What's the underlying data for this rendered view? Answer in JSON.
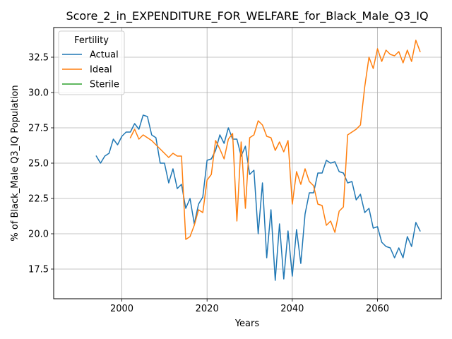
{
  "chart_data": {
    "type": "line",
    "title": "Score_2_in_EXPENDITURE_FOR_WELFARE_for_Black_Male_Q3_IQ",
    "xlabel": "Years",
    "ylabel": "% of Black_Male Q3_IQ Population",
    "xlim": [
      1984,
      2075
    ],
    "ylim": [
      15.4,
      34.6
    ],
    "xticks": [
      2000,
      2020,
      2040,
      2060
    ],
    "yticks": [
      17.5,
      20.0,
      22.5,
      25.0,
      27.5,
      30.0,
      32.5
    ],
    "xtick_labels": [
      "2000",
      "2020",
      "2040",
      "2060"
    ],
    "ytick_labels": [
      "17.5",
      "20.0",
      "22.5",
      "25.0",
      "27.5",
      "30.0",
      "32.5"
    ],
    "grid": true,
    "legend": {
      "title": "Fertility",
      "placement": "top-left",
      "entries": [
        "Actual",
        "Ideal",
        "Sterile"
      ]
    },
    "colors": {
      "Actual": "#1f77b4",
      "Ideal": "#ff7f0e",
      "Sterile": "#2ca02c"
    },
    "series": [
      {
        "name": "Actual",
        "x": [
          1994,
          1995,
          1996,
          1997,
          1998,
          1999,
          2000,
          2001,
          2002,
          2003,
          2004,
          2005,
          2006,
          2007,
          2008,
          2009,
          2010,
          2011,
          2012,
          2013,
          2014,
          2015,
          2016,
          2017,
          2018,
          2019,
          2020,
          2021,
          2022,
          2023,
          2024,
          2025,
          2026,
          2027,
          2028,
          2029,
          2030,
          2031,
          2032,
          2033,
          2034,
          2035,
          2036,
          2037,
          2038,
          2039,
          2040,
          2041,
          2042,
          2043,
          2044,
          2045,
          2046,
          2047,
          2048,
          2049,
          2050,
          2051,
          2052,
          2053,
          2054,
          2055,
          2056,
          2057,
          2058,
          2059,
          2060,
          2061,
          2062,
          2063,
          2064,
          2065,
          2066,
          2067,
          2068,
          2069,
          2070
        ],
        "values": [
          25.5,
          25.0,
          25.5,
          25.7,
          26.7,
          26.3,
          26.9,
          27.2,
          27.2,
          27.8,
          27.4,
          28.4,
          28.3,
          27.0,
          26.8,
          25.0,
          25.0,
          23.6,
          24.6,
          23.2,
          23.5,
          21.8,
          22.5,
          20.7,
          22.1,
          22.6,
          25.2,
          25.3,
          25.9,
          27.0,
          26.4,
          27.5,
          26.7,
          26.7,
          25.5,
          26.2,
          24.2,
          24.5,
          20.0,
          23.6,
          18.3,
          21.7,
          16.7,
          20.7,
          16.8,
          20.2,
          17.0,
          20.3,
          17.9,
          21.4,
          22.9,
          22.9,
          24.3,
          24.3,
          25.2,
          25.0,
          25.1,
          24.4,
          24.3,
          23.6,
          23.7,
          22.4,
          22.8,
          21.5,
          21.8,
          20.4,
          20.5,
          19.4,
          19.1,
          19.0,
          18.3,
          19.0,
          18.3,
          19.8,
          19.1,
          20.8,
          20.2
        ]
      },
      {
        "name": "Ideal",
        "x": [
          2002,
          2003,
          2004,
          2005,
          2006,
          2007,
          2008,
          2009,
          2010,
          2011,
          2012,
          2013,
          2014,
          2015,
          2016,
          2017,
          2018,
          2019,
          2020,
          2021,
          2022,
          2023,
          2024,
          2025,
          2026,
          2027,
          2028,
          2029,
          2030,
          2031,
          2032,
          2033,
          2034,
          2035,
          2036,
          2037,
          2038,
          2039,
          2040,
          2041,
          2042,
          2043,
          2044,
          2045,
          2046,
          2047,
          2048,
          2049,
          2050,
          2051,
          2052,
          2053,
          2054,
          2055,
          2056,
          2057,
          2058,
          2059,
          2060,
          2061,
          2062,
          2063,
          2064,
          2065,
          2066,
          2067,
          2068,
          2069,
          2070
        ],
        "values": [
          26.8,
          27.4,
          26.7,
          27.0,
          26.8,
          26.6,
          26.3,
          26.0,
          25.7,
          25.4,
          25.7,
          25.5,
          25.5,
          19.6,
          19.8,
          20.6,
          21.7,
          21.5,
          23.8,
          24.2,
          26.6,
          26.0,
          25.3,
          26.7,
          27.1,
          20.9,
          26.5,
          21.8,
          26.8,
          27.0,
          28.0,
          27.7,
          26.9,
          26.8,
          25.9,
          26.5,
          25.8,
          26.6,
          22.1,
          24.4,
          23.5,
          24.6,
          23.7,
          23.4,
          22.1,
          22.0,
          20.6,
          20.9,
          20.1,
          21.6,
          21.9,
          27.0,
          27.2,
          27.4,
          27.7,
          30.4,
          32.5,
          31.7,
          33.1,
          32.2,
          33.0,
          32.7,
          32.6,
          32.9,
          32.1,
          33.0,
          32.2,
          33.7,
          32.9
        ]
      },
      {
        "name": "Sterile",
        "x": [],
        "values": []
      }
    ]
  }
}
